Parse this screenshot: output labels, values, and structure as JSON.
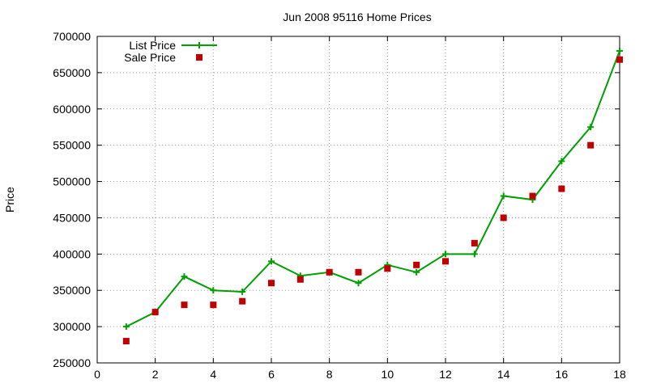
{
  "chart_data": {
    "type": "line",
    "title": "Jun 2008 95116 Home Prices",
    "xlabel": "",
    "ylabel": "Price",
    "xlim": [
      0,
      18
    ],
    "ylim": [
      250000,
      700000
    ],
    "x_ticks": [
      0,
      2,
      4,
      6,
      8,
      10,
      12,
      14,
      16,
      18
    ],
    "y_ticks": [
      250000,
      300000,
      350000,
      400000,
      450000,
      500000,
      550000,
      600000,
      650000,
      700000
    ],
    "grid": true,
    "legend_position": "top-left",
    "series": [
      {
        "name": "List Price",
        "style": "line-with-plus-markers",
        "color": "#00a000",
        "x": [
          1,
          2,
          3,
          4,
          5,
          6,
          7,
          8,
          9,
          10,
          11,
          12,
          13,
          14,
          15,
          16,
          17,
          18
        ],
        "values": [
          300000,
          320000,
          369000,
          350000,
          348000,
          390000,
          370000,
          375000,
          360000,
          385000,
          375000,
          400000,
          400000,
          480000,
          475000,
          528000,
          575000,
          680000
        ]
      },
      {
        "name": "Sale Price",
        "style": "square-markers",
        "color": "#c00000",
        "x": [
          1,
          2,
          3,
          4,
          5,
          6,
          7,
          8,
          9,
          10,
          11,
          12,
          13,
          14,
          15,
          16,
          17,
          18
        ],
        "values": [
          280000,
          320000,
          330000,
          330000,
          335000,
          360000,
          365000,
          375000,
          375000,
          380000,
          385000,
          390000,
          415000,
          450000,
          480000,
          490000,
          550000,
          668000
        ]
      }
    ]
  }
}
